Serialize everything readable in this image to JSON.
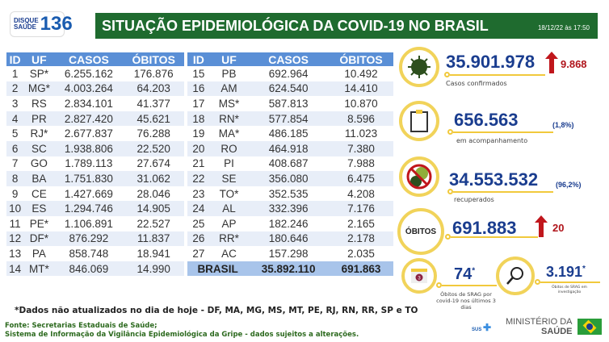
{
  "logo": {
    "line1": "DISQUE",
    "line2": "SAÚDE",
    "number": "136"
  },
  "header": {
    "title": "SITUAÇÃO EPIDEMIOLÓGICA DA COVID-19 NO BRASIL",
    "datetime": "18/12/22 às 17:50"
  },
  "columns": [
    "ID",
    "UF",
    "CASOS",
    "ÓBITOS"
  ],
  "table_left": [
    [
      "1",
      "SP*",
      "6.255.162",
      "176.876"
    ],
    [
      "2",
      "MG*",
      "4.003.264",
      "64.203"
    ],
    [
      "3",
      "RS",
      "2.834.101",
      "41.377"
    ],
    [
      "4",
      "PR",
      "2.827.420",
      "45.621"
    ],
    [
      "5",
      "RJ*",
      "2.677.837",
      "76.288"
    ],
    [
      "6",
      "SC",
      "1.938.806",
      "22.520"
    ],
    [
      "7",
      "GO",
      "1.789.113",
      "27.674"
    ],
    [
      "8",
      "BA",
      "1.751.830",
      "31.062"
    ],
    [
      "9",
      "CE",
      "1.427.669",
      "28.046"
    ],
    [
      "10",
      "ES",
      "1.294.746",
      "14.905"
    ],
    [
      "11",
      "PE*",
      "1.106.891",
      "22.527"
    ],
    [
      "12",
      "DF*",
      "876.292",
      "11.837"
    ],
    [
      "13",
      "PA",
      "858.748",
      "18.941"
    ],
    [
      "14",
      "MT*",
      "846.069",
      "14.990"
    ]
  ],
  "table_right": [
    [
      "15",
      "PB",
      "692.964",
      "10.492"
    ],
    [
      "16",
      "AM",
      "624.540",
      "14.410"
    ],
    [
      "17",
      "MS*",
      "587.813",
      "10.870"
    ],
    [
      "18",
      "RN*",
      "577.854",
      "8.596"
    ],
    [
      "19",
      "MA*",
      "486.185",
      "11.023"
    ],
    [
      "20",
      "RO",
      "464.918",
      "7.380"
    ],
    [
      "21",
      "PI",
      "408.687",
      "7.988"
    ],
    [
      "22",
      "SE",
      "356.080",
      "6.475"
    ],
    [
      "23",
      "TO*",
      "352.535",
      "4.208"
    ],
    [
      "24",
      "AL",
      "332.396",
      "7.176"
    ],
    [
      "25",
      "AP",
      "182.246",
      "2.165"
    ],
    [
      "26",
      "RR*",
      "180.646",
      "2.178"
    ],
    [
      "27",
      "AC",
      "157.298",
      "2.035"
    ]
  ],
  "total": {
    "label": "BRASIL",
    "casos": "35.892.110",
    "obitos": "691.863"
  },
  "stats": {
    "confirmados": {
      "value": "35.901.978",
      "delta": "9.868",
      "label": "Casos confirmados"
    },
    "acompanhamento": {
      "value": "656.563",
      "pct": "(1,8%)",
      "label": "em acompanhamento"
    },
    "recuperados": {
      "value": "34.553.532",
      "pct": "(96,2%)",
      "label": "recuperados"
    },
    "obitos": {
      "badge": "ÓBITOS",
      "value": "691.883",
      "delta": "20"
    },
    "srag": {
      "value": "74",
      "mark": "*",
      "label": "Óbitos de SRAG por covid-19 nos últimos 3 dias",
      "calendar": "3"
    },
    "investigacao": {
      "value": "3.191",
      "mark": "*",
      "label": "Óbitos de SRAG em investigação"
    }
  },
  "footnote": "*Dados não atualizados no dia de hoje - DF, MA, MG, MS, MT, PE, RJ, RN, RR, SP e TO",
  "sources": [
    "Fonte: Secretarias Estaduais de Saúde;",
    "Sistema de Informação da Vigilância Epidemiológica da Gripe - dados sujeitos a alterações."
  ],
  "brand": {
    "sus": "SUS",
    "ministerio": "MINISTÉRIO DA",
    "saude": "SAÚDE"
  },
  "colors": {
    "banner": "#1f6b2f",
    "header": "#5a8fd6",
    "accent": "#f1c93c",
    "number": "#1a3d8f",
    "up": "#c0161c"
  }
}
